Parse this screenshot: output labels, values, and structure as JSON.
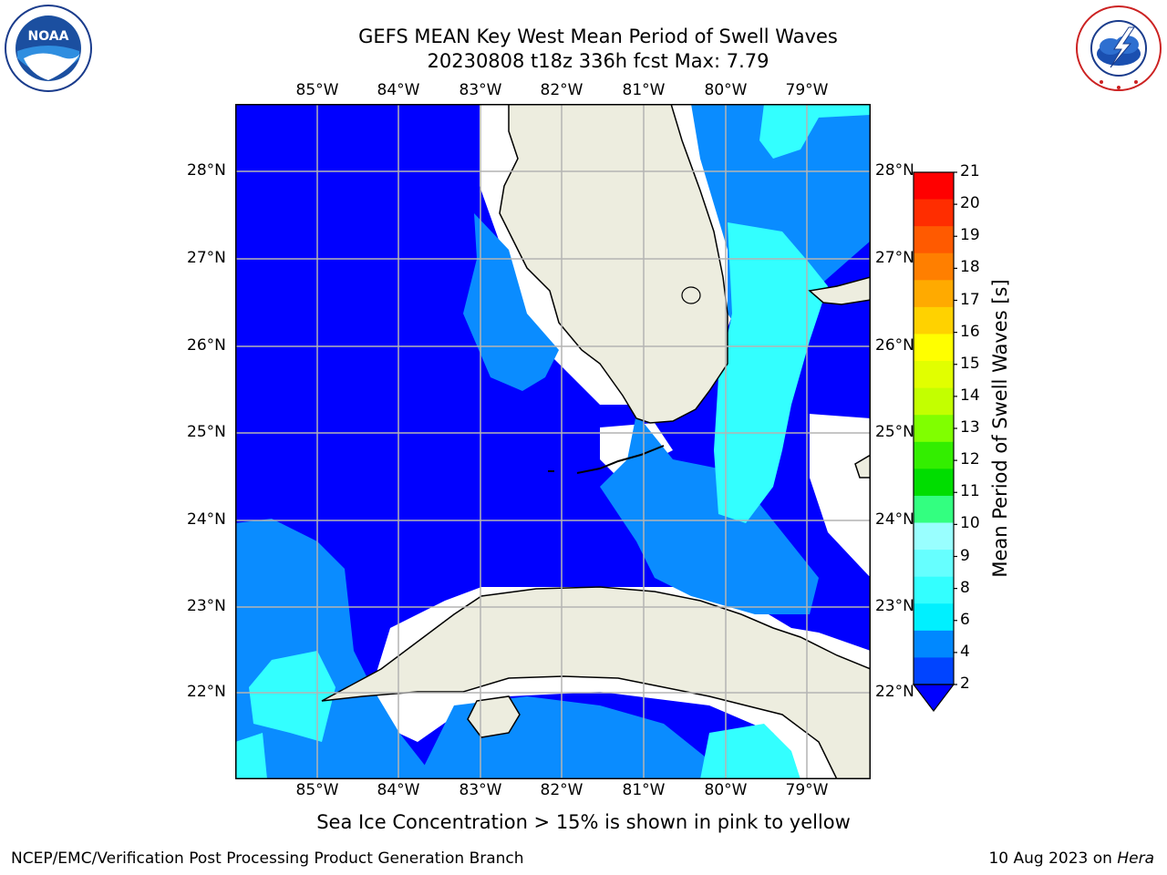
{
  "header": {
    "title_line1": "GEFS MEAN Key West Mean Period of Swell Waves",
    "title_line2": "20230808 t18z 336h fcst   Max: 7.79"
  },
  "logos": {
    "left": {
      "name": "noaa-logo",
      "text": "NOAA",
      "ring_text": "NATIONAL OCEANIC AND ATMOSPHERIC ADMINISTRATION · U.S. DEPARTMENT OF COMMERCE"
    },
    "right": {
      "name": "nws-logo",
      "ring_text": "NATIONAL WEATHER SERVICE"
    }
  },
  "map": {
    "lon_labels": [
      "85°W",
      "84°W",
      "83°W",
      "82°W",
      "81°W",
      "80°W",
      "79°W"
    ],
    "lat_labels": [
      "28°N",
      "27°N",
      "26°N",
      "25°N",
      "24°N",
      "23°N",
      "22°N"
    ],
    "colors": {
      "land": "#ededdf",
      "coast": "#000000",
      "grid": "#b4b4b4",
      "deep_blue": "#0000ff",
      "mid_blue": "#0066ff",
      "light_blue": "#0a8cff",
      "cyan": "#00ffff",
      "light_cyan": "#33ffff",
      "no_data": "#ffffff"
    }
  },
  "colorbar": {
    "title": "Mean Period of Swell Waves [s]",
    "ticks": [
      "21",
      "20",
      "19",
      "18",
      "17",
      "16",
      "15",
      "14",
      "13",
      "12",
      "11",
      "10",
      "9",
      "8",
      "6",
      "4",
      "2"
    ],
    "colors": [
      "#ff0000",
      "#ff2d00",
      "#ff5a00",
      "#ff7f00",
      "#ffaa00",
      "#ffd200",
      "#ffff00",
      "#e1ff00",
      "#c3ff00",
      "#80ff00",
      "#33ee00",
      "#00dd00",
      "#33ff80",
      "#99ffff",
      "#66ffff",
      "#33ffff",
      "#00f0ff",
      "#0088ff",
      "#0044ff"
    ],
    "extend_color": "#0000ff"
  },
  "note": "Sea Ice Concentration > 15% is shown in pink to yellow",
  "footer": {
    "left": "NCEP/EMC/Verification Post Processing Product Generation Branch",
    "right_date": "10 Aug 2023 on",
    "right_machine": "Hera"
  }
}
